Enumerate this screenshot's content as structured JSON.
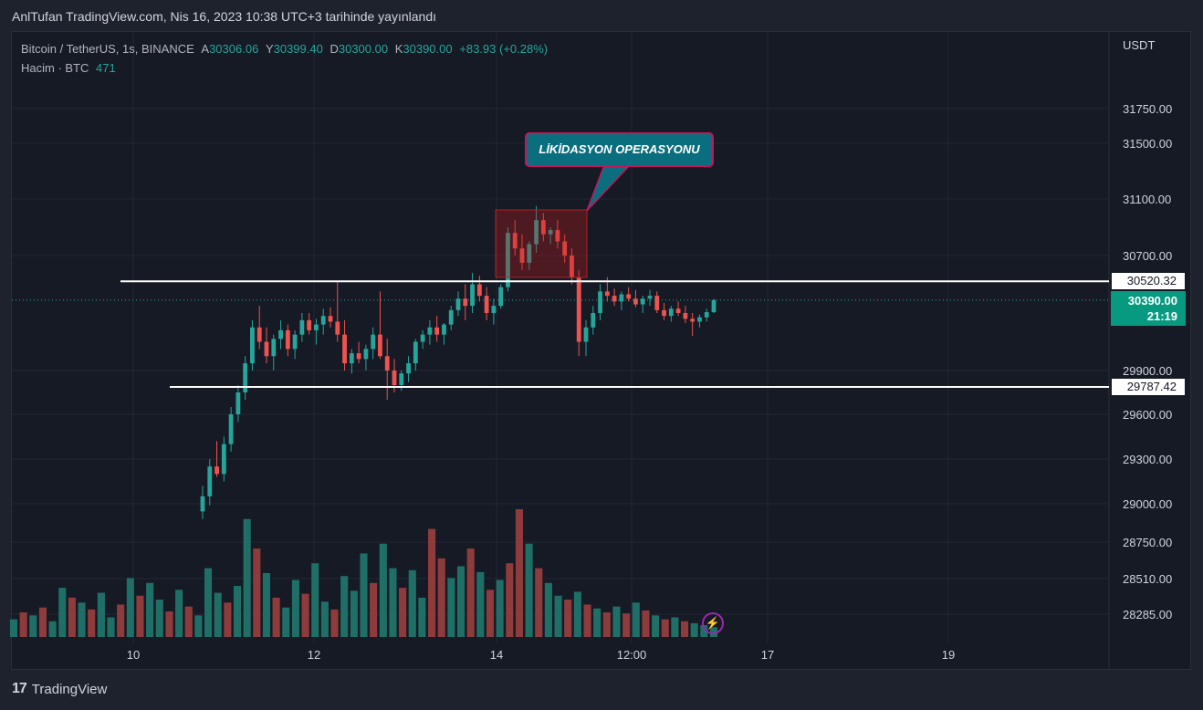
{
  "header": {
    "published": "AnlTufan TradingView.com, Nis 16, 2023 10:38 UTC+3 tarihinde yayınlandı"
  },
  "legend": {
    "symbol": "Bitcoin / TetherUS, 1s, BINANCE",
    "open_label": "A",
    "open": "30306.06",
    "high_label": "Y",
    "high": "30399.40",
    "low_label": "D",
    "low": "30300.00",
    "close_label": "K",
    "close": "30390.00",
    "change": "+83.93 (+0.28%)",
    "volume_label": "Hacim · BTC",
    "volume": "471"
  },
  "currency": "USDT",
  "annotation": {
    "text": "LİKİDASYON OPERASYONU"
  },
  "price_tags": {
    "resistance": "30520.32",
    "support": "29787.42",
    "last_price": "30390.00",
    "countdown": "21:19"
  },
  "brand": {
    "logo": "17",
    "name": "TradingView"
  },
  "colors": {
    "up": "#26a69a",
    "down": "#ef5350",
    "up_volume": "#1f6f67",
    "down_volume": "#8e3b3b",
    "callout_fill": "#0b6e7e",
    "callout_border": "#c2185b",
    "highlight_box": "#b71c1c"
  },
  "chart_data": {
    "type": "candlestick",
    "symbol": "Bitcoin / TetherUS",
    "timeframe": "1s",
    "exchange": "BINANCE",
    "y_axis": {
      "ticks": [
        "31750.00",
        "31500.00",
        "31100.00",
        "30700.00",
        "29900.00",
        "29600.00",
        "29300.00",
        "29000.00",
        "28750.00",
        "28510.00",
        "28285.00"
      ],
      "range": [
        28150,
        31950
      ],
      "scale": "log"
    },
    "x_axis": {
      "ticks": [
        "10",
        "12",
        "14",
        "12:00",
        "17",
        "19"
      ]
    },
    "horizontal_levels": [
      30520.32,
      29787.42
    ],
    "last_price": 30390.0,
    "grid": true,
    "candles": [
      [
        28950,
        29120,
        28900,
        29050
      ],
      [
        29050,
        29300,
        28990,
        29250
      ],
      [
        29250,
        29420,
        29180,
        29200
      ],
      [
        29200,
        29450,
        29150,
        29400
      ],
      [
        29400,
        29650,
        29350,
        29600
      ],
      [
        29600,
        29800,
        29550,
        29750
      ],
      [
        29750,
        30000,
        29700,
        29950
      ],
      [
        29950,
        30250,
        29900,
        30200
      ],
      [
        30200,
        30350,
        30050,
        30100
      ],
      [
        30100,
        30200,
        29950,
        30000
      ],
      [
        30000,
        30150,
        29900,
        30120
      ],
      [
        30120,
        30250,
        30050,
        30180
      ],
      [
        30180,
        30220,
        30000,
        30050
      ],
      [
        30050,
        30180,
        29980,
        30150
      ],
      [
        30150,
        30300,
        30100,
        30250
      ],
      [
        30250,
        30300,
        30150,
        30180
      ],
      [
        30180,
        30260,
        30080,
        30220
      ],
      [
        30220,
        30330,
        30150,
        30280
      ],
      [
        30280,
        30340,
        30200,
        30240
      ],
      [
        30240,
        30520,
        30100,
        30150
      ],
      [
        30150,
        30250,
        29900,
        29950
      ],
      [
        29950,
        30050,
        29880,
        30020
      ],
      [
        30020,
        30100,
        29950,
        29980
      ],
      [
        29980,
        30080,
        29900,
        30050
      ],
      [
        30050,
        30200,
        29980,
        30150
      ],
      [
        30150,
        30450,
        29980,
        30000
      ],
      [
        30000,
        30120,
        29700,
        29900
      ],
      [
        29900,
        29980,
        29750,
        29800
      ],
      [
        29800,
        29900,
        29760,
        29880
      ],
      [
        29880,
        30000,
        29820,
        29950
      ],
      [
        29950,
        30120,
        29900,
        30100
      ],
      [
        30100,
        30180,
        30050,
        30150
      ],
      [
        30150,
        30250,
        30080,
        30200
      ],
      [
        30200,
        30280,
        30100,
        30150
      ],
      [
        30150,
        30230,
        30080,
        30220
      ],
      [
        30220,
        30350,
        30180,
        30320
      ],
      [
        30320,
        30450,
        30280,
        30400
      ],
      [
        30400,
        30500,
        30250,
        30350
      ],
      [
        30350,
        30580,
        30300,
        30500
      ],
      [
        30500,
        30560,
        30380,
        30420
      ],
      [
        30420,
        30480,
        30250,
        30300
      ],
      [
        30300,
        30400,
        30220,
        30350
      ],
      [
        30350,
        30500,
        30330,
        30480
      ],
      [
        30480,
        30900,
        30450,
        30860
      ],
      [
        30860,
        30950,
        30700,
        30750
      ],
      [
        30750,
        30850,
        30600,
        30650
      ],
      [
        30650,
        30800,
        30600,
        30780
      ],
      [
        30780,
        31050,
        30720,
        30950
      ],
      [
        30950,
        31000,
        30800,
        30850
      ],
      [
        30850,
        30900,
        30780,
        30880
      ],
      [
        30880,
        30950,
        30750,
        30800
      ],
      [
        30800,
        30850,
        30650,
        30700
      ],
      [
        30700,
        30750,
        30500,
        30550
      ],
      [
        30550,
        30600,
        30000,
        30100
      ],
      [
        30100,
        30250,
        30000,
        30200
      ],
      [
        30200,
        30350,
        30150,
        30300
      ],
      [
        30300,
        30500,
        30250,
        30450
      ],
      [
        30450,
        30550,
        30380,
        30420
      ],
      [
        30420,
        30470,
        30350,
        30380
      ],
      [
        30380,
        30450,
        30320,
        30430
      ],
      [
        30430,
        30480,
        30380,
        30400
      ],
      [
        30400,
        30460,
        30340,
        30360
      ],
      [
        30360,
        30420,
        30300,
        30400
      ],
      [
        30400,
        30460,
        30350,
        30420
      ],
      [
        30420,
        30450,
        30300,
        30320
      ],
      [
        30320,
        30370,
        30250,
        30280
      ],
      [
        30280,
        30350,
        30240,
        30330
      ],
      [
        30330,
        30380,
        30280,
        30300
      ],
      [
        30300,
        30350,
        30230,
        30260
      ],
      [
        30260,
        30300,
        30140,
        30240
      ],
      [
        30240,
        30290,
        30200,
        30270
      ],
      [
        30270,
        30330,
        30240,
        30306
      ],
      [
        30306,
        30399,
        30300,
        30390
      ]
    ],
    "volumes": [
      [
        18,
        1
      ],
      [
        25,
        0
      ],
      [
        22,
        1
      ],
      [
        30,
        0
      ],
      [
        16,
        1
      ],
      [
        50,
        1
      ],
      [
        40,
        0
      ],
      [
        35,
        1
      ],
      [
        28,
        0
      ],
      [
        45,
        1
      ],
      [
        20,
        1
      ],
      [
        33,
        0
      ],
      [
        60,
        1
      ],
      [
        42,
        0
      ],
      [
        55,
        1
      ],
      [
        38,
        1
      ],
      [
        26,
        0
      ],
      [
        48,
        1
      ],
      [
        31,
        0
      ],
      [
        22,
        1
      ],
      [
        70,
        1
      ],
      [
        45,
        1
      ],
      [
        35,
        0
      ],
      [
        52,
        1
      ],
      [
        120,
        1
      ],
      [
        90,
        0
      ],
      [
        65,
        1
      ],
      [
        40,
        0
      ],
      [
        30,
        1
      ],
      [
        58,
        1
      ],
      [
        44,
        0
      ],
      [
        75,
        1
      ],
      [
        36,
        1
      ],
      [
        28,
        0
      ],
      [
        62,
        1
      ],
      [
        47,
        1
      ],
      [
        85,
        1
      ],
      [
        55,
        0
      ],
      [
        95,
        1
      ],
      [
        70,
        1
      ],
      [
        50,
        0
      ],
      [
        68,
        1
      ],
      [
        40,
        1
      ],
      [
        110,
        0
      ],
      [
        80,
        0
      ],
      [
        60,
        1
      ],
      [
        72,
        1
      ],
      [
        90,
        0
      ],
      [
        66,
        1
      ],
      [
        48,
        0
      ],
      [
        58,
        1
      ],
      [
        75,
        0
      ],
      [
        130,
        0
      ],
      [
        95,
        1
      ],
      [
        70,
        0
      ],
      [
        55,
        1
      ],
      [
        42,
        1
      ],
      [
        38,
        0
      ],
      [
        46,
        1
      ],
      [
        33,
        0
      ],
      [
        29,
        1
      ],
      [
        25,
        0
      ],
      [
        31,
        1
      ],
      [
        24,
        0
      ],
      [
        35,
        1
      ],
      [
        27,
        0
      ],
      [
        22,
        1
      ],
      [
        18,
        0
      ],
      [
        20,
        1
      ],
      [
        16,
        0
      ],
      [
        14,
        1
      ],
      [
        12,
        1
      ],
      [
        10,
        1
      ]
    ]
  }
}
